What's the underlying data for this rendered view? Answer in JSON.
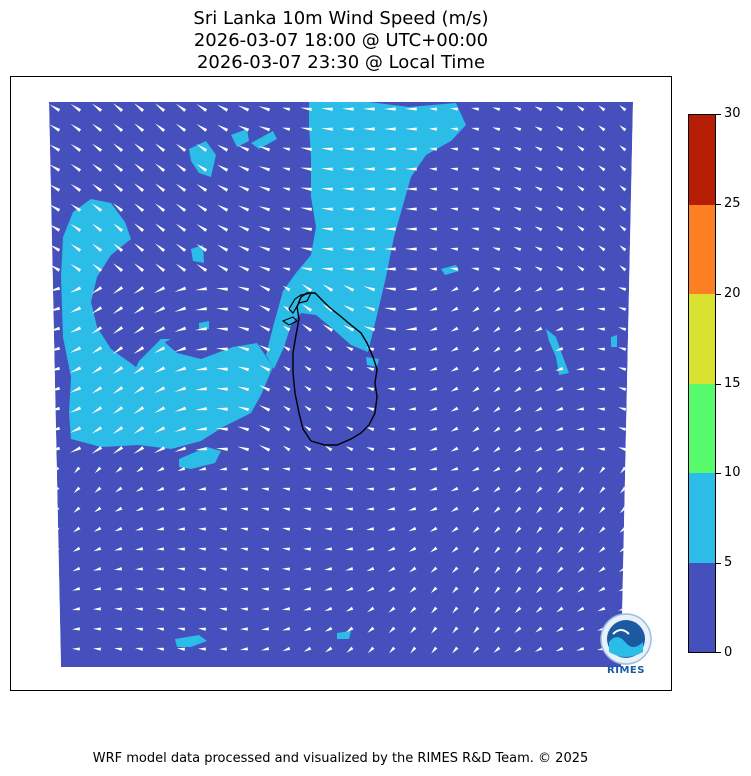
{
  "title": {
    "line1": "Sri Lanka 10m Wind Speed (m/s)",
    "line2": "2026-03-07 18:00 @ UTC+00:00",
    "line3": "2026-03-07 23:30 @ Local Time"
  },
  "map": {
    "variable": "10m wind speed",
    "units": "m/s",
    "region": "Sri Lanka",
    "dominant_speed_class": "0-5",
    "highlight_speed_class": "5-10",
    "arrow_color": "#ffffff",
    "coastline_color": "#000000"
  },
  "colorbar": {
    "ticks": [
      "0",
      "5",
      "10",
      "15",
      "20",
      "25",
      "30"
    ],
    "bins": [
      {
        "range": "0-5",
        "color": "#4550bd"
      },
      {
        "range": "5-10",
        "color": "#2bbce8"
      },
      {
        "range": "10-15",
        "color": "#57fa6b"
      },
      {
        "range": "15-20",
        "color": "#d9e230"
      },
      {
        "range": "20-25",
        "color": "#fc7f24"
      },
      {
        "range": "25-30",
        "color": "#b51d04"
      }
    ]
  },
  "logo": {
    "text": "RIMES"
  },
  "footer": "WRF model data processed and visualized by the RIMES R&D Team. © 2025"
}
